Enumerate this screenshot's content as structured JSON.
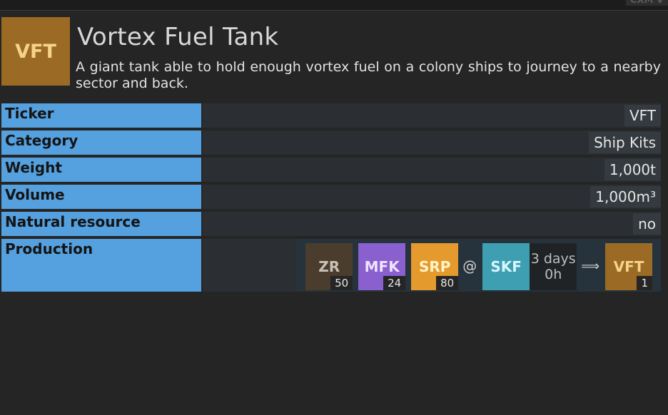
{
  "top_right_tag": "CXM V",
  "header": {
    "icon_ticker": "VFT",
    "title": "Vortex Fuel Tank",
    "description": "A giant tank able to hold enough vortex fuel on a colony ships to journey to a nearby sector and back."
  },
  "rows": [
    {
      "label": "Ticker",
      "value": "VFT"
    },
    {
      "label": "Category",
      "value": "Ship Kits"
    },
    {
      "label": "Weight",
      "value": "1,000t"
    },
    {
      "label": "Volume",
      "value": "1,000m³"
    },
    {
      "label": "Natural resource",
      "value": "no"
    }
  ],
  "production": {
    "label": "Production",
    "inputs": [
      {
        "ticker": "ZR",
        "amount": "50",
        "color": "#4a3d2e"
      },
      {
        "ticker": "MFK",
        "amount": "24",
        "color": "#8a5fce"
      },
      {
        "ticker": "SRP",
        "amount": "80",
        "color": "#e59a2d"
      }
    ],
    "at_symbol": "@",
    "building": "SKF",
    "duration_line1": "3 days",
    "duration_line2": "0h",
    "arrow": "⟹",
    "output": {
      "ticker": "VFT",
      "amount": "1",
      "color": "#9b6a24"
    }
  }
}
